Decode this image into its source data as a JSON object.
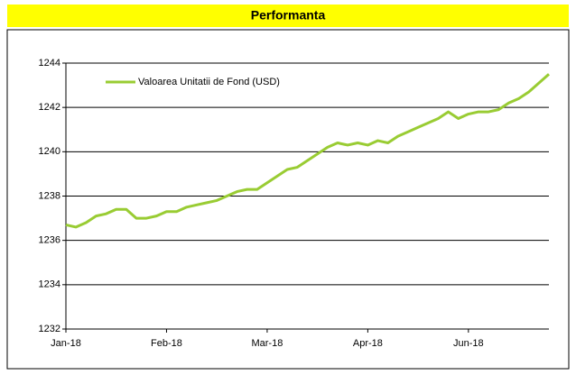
{
  "chart_data": {
    "type": "line",
    "title": "Performanta",
    "x": [
      0,
      1,
      2,
      3,
      4,
      5,
      6,
      7,
      8,
      9,
      10,
      11,
      12,
      13,
      14,
      15,
      16,
      17,
      18,
      19,
      20,
      21,
      22,
      23,
      24,
      25,
      26,
      27,
      28,
      29,
      30,
      31,
      32,
      33,
      34,
      35,
      36,
      37,
      38,
      39,
      40,
      41,
      42,
      43,
      44,
      45,
      46,
      47,
      48
    ],
    "series": [
      {
        "name": "Valoarea Unitatii de Fond (USD)",
        "color": "#99cc33",
        "values": [
          1236.7,
          1236.6,
          1236.8,
          1237.1,
          1237.2,
          1237.4,
          1237.4,
          1237.0,
          1237.0,
          1237.1,
          1237.3,
          1237.3,
          1237.5,
          1237.6,
          1237.7,
          1237.8,
          1238.0,
          1238.2,
          1238.3,
          1238.3,
          1238.6,
          1238.9,
          1239.2,
          1239.3,
          1239.6,
          1239.9,
          1240.2,
          1240.4,
          1240.3,
          1240.4,
          1240.3,
          1240.5,
          1240.4,
          1240.7,
          1240.9,
          1241.1,
          1241.3,
          1241.5,
          1241.8,
          1241.5,
          1241.7,
          1241.8,
          1241.8,
          1241.9,
          1242.2,
          1242.4,
          1242.7,
          1243.1,
          1243.5
        ]
      }
    ],
    "xlim": [
      0,
      48
    ],
    "xticks": [
      {
        "value": 0,
        "label": "Jan-18"
      },
      {
        "value": 10,
        "label": "Feb-18"
      },
      {
        "value": 20,
        "label": "Mar-18"
      },
      {
        "value": 30,
        "label": "Apr-18"
      },
      {
        "value": 40,
        "label": "Jun-18"
      }
    ],
    "ylim": [
      1232,
      1244
    ],
    "yticks": [
      1232,
      1234,
      1236,
      1238,
      1240,
      1242,
      1244
    ],
    "grid": true,
    "legend": "top-left",
    "header_color": "#ffff00"
  }
}
